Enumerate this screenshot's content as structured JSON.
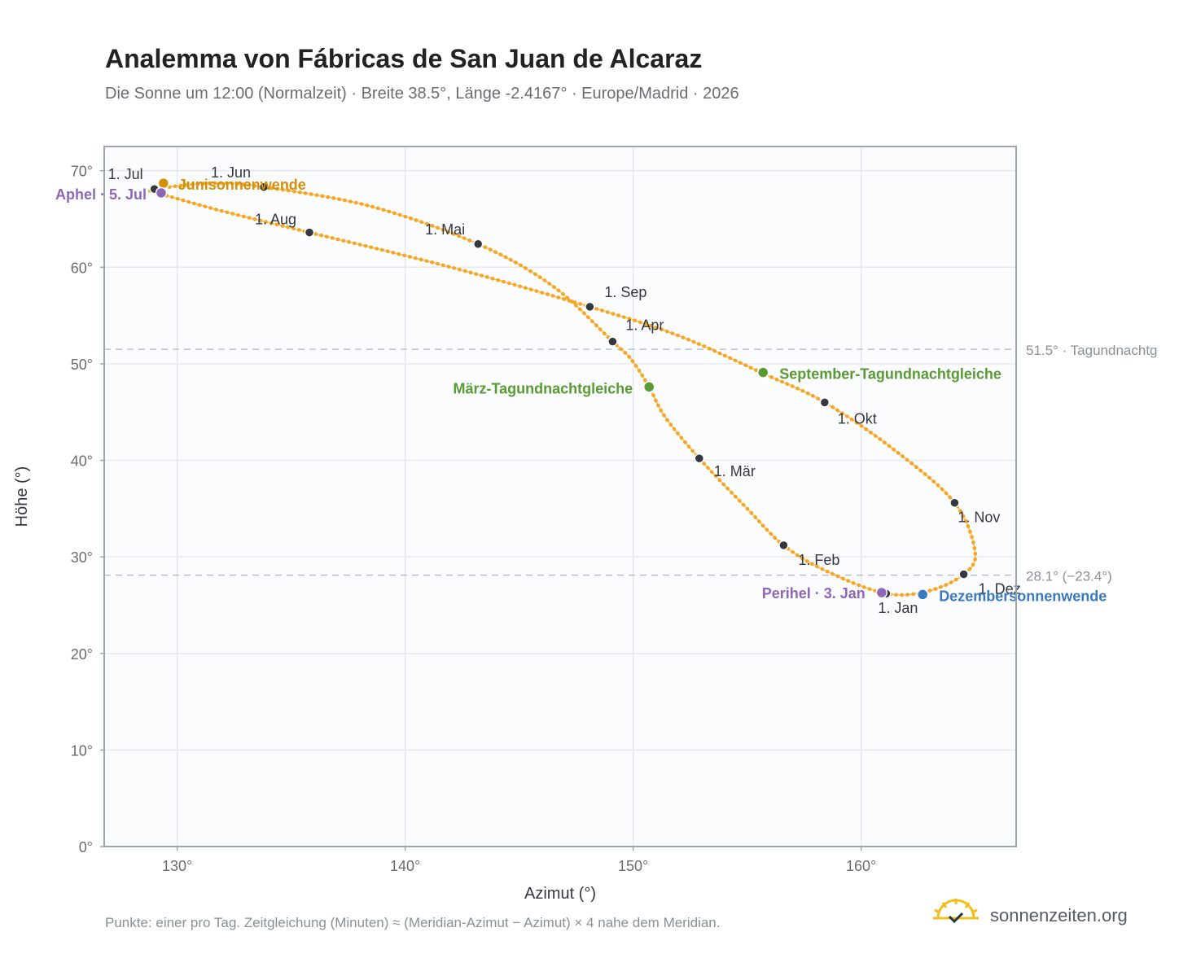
{
  "header": {
    "title": "Analemma von Fábricas de San Juan de Alcaraz",
    "subtitle": "Die Sonne um 12:00 (Normalzeit) · Breite 38.5°, Länge -2.4167° · Europe/Madrid · 2026"
  },
  "footer": {
    "note": "Punkte: einer pro Tag. Zeitgleichung (Minuten) ≈ (Meridian-Azimut − Azimut) × 4 nahe dem Meridian.",
    "brand": "sonnenzeiten.org"
  },
  "colors": {
    "curve": "#f5a623",
    "point": "#333840",
    "solstice_june": "#d4900a",
    "equinox": "#5a9a32",
    "apsis": "#8e68b8",
    "solstice_dec": "#3a7ac0",
    "refline": "#b8c2ce",
    "plot_bg": "#fbfcfe",
    "grid": "#e5e9ef",
    "frame": "#9aa5b2"
  },
  "chart_data": {
    "type": "scatter",
    "xlabel": "Azimut (°)",
    "ylabel": "Höhe (°)",
    "xlim": [
      126.8,
      166.8
    ],
    "ylim": [
      0,
      72.5
    ],
    "xticks": [
      130,
      140,
      150,
      160
    ],
    "yticks": [
      0,
      10,
      20,
      30,
      40,
      50,
      60,
      70
    ],
    "x_tick_labels": [
      "130°",
      "140°",
      "150°",
      "160°"
    ],
    "y_tick_labels": [
      "0°",
      "10°",
      "20°",
      "30°",
      "40°",
      "50°",
      "60°",
      "70°"
    ],
    "grid": true,
    "curve_x": [
      161.1,
      158.5,
      156.6,
      155.0,
      152.9,
      151.4,
      150.7,
      149.9,
      149.1,
      146.5,
      143.2,
      138.5,
      133.8,
      131.5,
      129.0,
      128.9,
      129.4,
      132.0,
      135.8,
      142.0,
      148.1,
      152.0,
      155.7,
      158.4,
      161.5,
      164.1,
      165.0,
      164.5,
      163.0,
      161.1
    ],
    "curve_y": [
      26.2,
      28.5,
      31.2,
      35.0,
      40.2,
      44.5,
      47.6,
      50.5,
      52.3,
      58.0,
      62.4,
      66.3,
      68.3,
      68.7,
      68.1,
      67.8,
      67.5,
      65.8,
      63.6,
      60.0,
      55.9,
      52.9,
      49.0,
      46.0,
      41.0,
      35.6,
      30.5,
      28.2,
      26.5,
      26.2
    ],
    "month_points": [
      {
        "label": "1. Jan",
        "x": 161.1,
        "y": 26.2
      },
      {
        "label": "1. Feb",
        "x": 156.6,
        "y": 31.2
      },
      {
        "label": "1. Mär",
        "x": 152.9,
        "y": 40.2
      },
      {
        "label": "1. Apr",
        "x": 149.1,
        "y": 52.3
      },
      {
        "label": "1. Mai",
        "x": 143.2,
        "y": 62.4
      },
      {
        "label": "1. Jun",
        "x": 133.8,
        "y": 68.3
      },
      {
        "label": "1. Jul",
        "x": 129.0,
        "y": 68.1
      },
      {
        "label": "1. Aug",
        "x": 135.8,
        "y": 63.6
      },
      {
        "label": "1. Sep",
        "x": 148.1,
        "y": 55.9
      },
      {
        "label": "1. Okt",
        "x": 158.4,
        "y": 46.0
      },
      {
        "label": "1. Nov",
        "x": 164.1,
        "y": 35.6
      },
      {
        "label": "1. Dez",
        "x": 164.5,
        "y": 28.2
      }
    ],
    "events": [
      {
        "label": "Junisonnenwende",
        "x": 129.4,
        "y": 68.7,
        "kind": "solstice_june"
      },
      {
        "label": "Aphel · 5. Jul",
        "x": 129.3,
        "y": 67.7,
        "kind": "apsis"
      },
      {
        "label": "März-Tagundnachtgleiche",
        "x": 150.7,
        "y": 47.6,
        "kind": "equinox"
      },
      {
        "label": "September-Tagundnachtgleiche",
        "x": 155.7,
        "y": 49.1,
        "kind": "equinox"
      },
      {
        "label": "Perihel · 3. Jan",
        "x": 160.9,
        "y": 26.3,
        "kind": "apsis"
      },
      {
        "label": "Dezembersonnenwende",
        "x": 162.7,
        "y": 26.1,
        "kind": "solstice_dec"
      }
    ],
    "reference_lines": [
      {
        "y": 51.5,
        "label": "51.5° · Tagundnachtg"
      },
      {
        "y": 28.1,
        "label": "28.1° (−23.4°)"
      }
    ]
  }
}
